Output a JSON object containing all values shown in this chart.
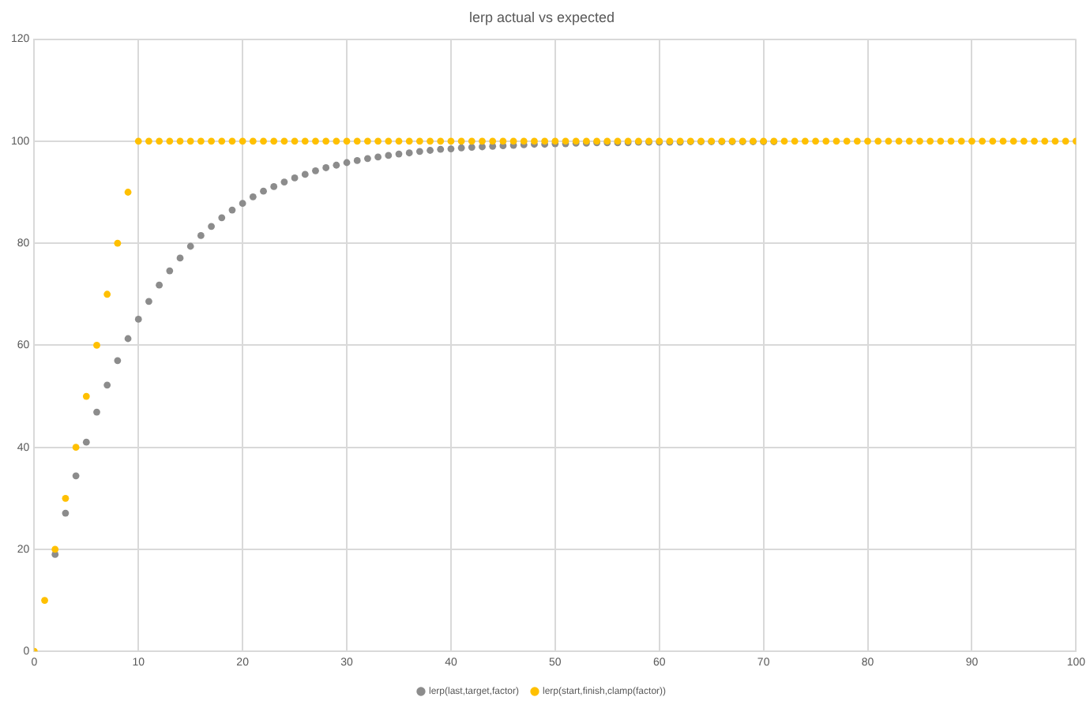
{
  "chart_data": {
    "type": "scatter",
    "title": "lerp actual vs expected",
    "x": [
      0,
      1,
      2,
      3,
      4,
      5,
      6,
      7,
      8,
      9,
      10,
      11,
      12,
      13,
      14,
      15,
      16,
      17,
      18,
      19,
      20,
      21,
      22,
      23,
      24,
      25,
      26,
      27,
      28,
      29,
      30,
      31,
      32,
      33,
      34,
      35,
      36,
      37,
      38,
      39,
      40,
      41,
      42,
      43,
      44,
      45,
      46,
      47,
      48,
      49,
      50,
      51,
      52,
      53,
      54,
      55,
      56,
      57,
      58,
      59,
      60,
      61,
      62,
      63,
      64,
      65,
      66,
      67,
      68,
      69,
      70,
      71,
      72,
      73,
      74,
      75,
      76,
      77,
      78,
      79,
      80,
      81,
      82,
      83,
      84,
      85,
      86,
      87,
      88,
      89,
      90,
      91,
      92,
      93,
      94,
      95,
      96,
      97,
      98,
      99,
      100
    ],
    "series": [
      {
        "name": "lerp(last,target,factor)",
        "color": "#8c8c8c",
        "values": [
          null,
          null,
          19,
          27.1,
          34.4,
          41,
          46.9,
          52.2,
          57,
          61.3,
          65.1,
          68.6,
          71.8,
          74.6,
          77.1,
          79.4,
          81.5,
          83.3,
          85,
          86.5,
          87.8,
          89.1,
          90.2,
          91.1,
          92,
          92.8,
          93.5,
          94.2,
          94.8,
          95.3,
          95.8,
          96.2,
          96.6,
          96.9,
          97.2,
          97.5,
          97.7,
          98,
          98.2,
          98.4,
          98.5,
          98.7,
          98.8,
          98.9,
          99,
          99.1,
          99.2,
          99.3,
          99.4,
          99.4,
          99.5,
          99.5,
          99.6,
          99.6,
          99.7,
          99.7,
          99.7,
          99.7,
          99.8,
          99.8,
          99.8,
          99.8,
          99.8,
          99.9,
          99.9,
          99.9,
          99.9,
          99.9,
          99.9,
          99.9,
          99.9,
          99.9,
          null,
          null,
          null,
          null,
          null,
          null,
          null,
          null,
          null,
          null,
          null,
          null,
          null,
          null,
          null,
          null,
          null,
          null,
          null,
          null,
          null,
          null,
          null,
          null,
          null,
          null,
          null,
          null,
          null
        ]
      },
      {
        "name": "lerp(start,finish,clamp(factor))",
        "color": "#ffc000",
        "values": [
          0,
          10,
          20,
          30,
          40,
          50,
          60,
          70,
          80,
          90,
          100,
          100,
          100,
          100,
          100,
          100,
          100,
          100,
          100,
          100,
          100,
          100,
          100,
          100,
          100,
          100,
          100,
          100,
          100,
          100,
          100,
          100,
          100,
          100,
          100,
          100,
          100,
          100,
          100,
          100,
          100,
          100,
          100,
          100,
          100,
          100,
          100,
          100,
          100,
          100,
          100,
          100,
          100,
          100,
          100,
          100,
          100,
          100,
          100,
          100,
          100,
          100,
          100,
          100,
          100,
          100,
          100,
          100,
          100,
          100,
          100,
          100,
          100,
          100,
          100,
          100,
          100,
          100,
          100,
          100,
          100,
          100,
          100,
          100,
          100,
          100,
          100,
          100,
          100,
          100,
          100,
          100,
          100,
          100,
          100,
          100,
          100,
          100,
          100,
          100,
          100
        ]
      }
    ],
    "xlim": [
      0,
      100
    ],
    "xticks": [
      0,
      10,
      20,
      30,
      40,
      50,
      60,
      70,
      80,
      90,
      100
    ],
    "ylim": [
      0,
      120
    ],
    "yticks": [
      0,
      20,
      40,
      60,
      80,
      100,
      120
    ],
    "grid": true,
    "legend": "bottom",
    "marker": "circle"
  }
}
